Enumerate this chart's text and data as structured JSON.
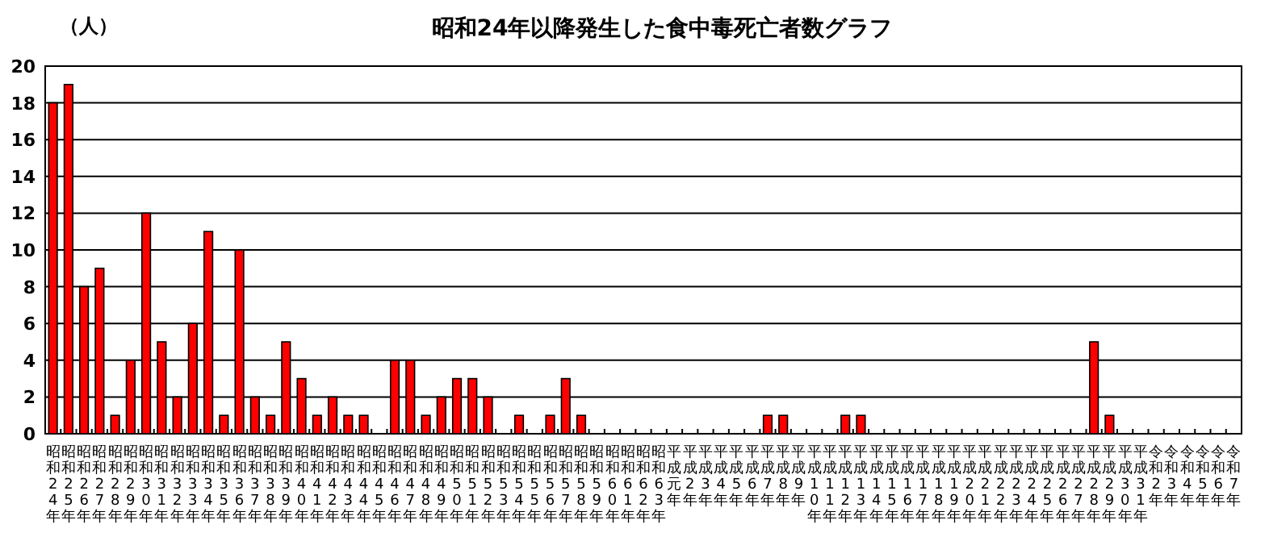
{
  "chart_data": {
    "type": "bar",
    "title": "昭和24年以降発生した食中毒死亡者数グラフ",
    "ylabel": "（人）",
    "categories": [
      "昭和24年",
      "昭和25年",
      "昭和26年",
      "昭和27年",
      "昭和28年",
      "昭和29年",
      "昭和30年",
      "昭和31年",
      "昭和32年",
      "昭和33年",
      "昭和34年",
      "昭和35年",
      "昭和36年",
      "昭和37年",
      "昭和38年",
      "昭和39年",
      "昭和40年",
      "昭和41年",
      "昭和42年",
      "昭和43年",
      "昭和44年",
      "昭和45年",
      "昭和46年",
      "昭和47年",
      "昭和48年",
      "昭和49年",
      "昭和50年",
      "昭和51年",
      "昭和52年",
      "昭和53年",
      "昭和54年",
      "昭和55年",
      "昭和56年",
      "昭和57年",
      "昭和58年",
      "昭和59年",
      "昭和60年",
      "昭和61年",
      "昭和62年",
      "昭和63年",
      "平成元年",
      "平成2年",
      "平成3年",
      "平成4年",
      "平成5年",
      "平成6年",
      "平成7年",
      "平成8年",
      "平成9年",
      "平成10年",
      "平成11年",
      "平成12年",
      "平成13年",
      "平成14年",
      "平成15年",
      "平成16年",
      "平成17年",
      "平成18年",
      "平成19年",
      "平成20年",
      "平成21年",
      "平成22年",
      "平成23年",
      "平成24年",
      "平成25年",
      "平成26年",
      "平成27年",
      "平成28年",
      "平成29年",
      "平成30年",
      "平成31年",
      "令和2年",
      "令和3年",
      "令和4年",
      "令和5年",
      "令和6年",
      "令和7年"
    ],
    "values": [
      18,
      19,
      8,
      9,
      1,
      4,
      12,
      5,
      2,
      6,
      11,
      1,
      10,
      2,
      1,
      5,
      3,
      1,
      2,
      1,
      1,
      0,
      4,
      4,
      1,
      2,
      3,
      3,
      2,
      0,
      1,
      0,
      1,
      3,
      1,
      0,
      0,
      0,
      0,
      0,
      0,
      0,
      0,
      0,
      0,
      0,
      1,
      1,
      0,
      0,
      0,
      1,
      1,
      0,
      0,
      0,
      0,
      0,
      0,
      0,
      0,
      0,
      0,
      0,
      0,
      0,
      0,
      5,
      1,
      0,
      0,
      0,
      0,
      0,
      0,
      0,
      0
    ],
    "color": "#ff0000",
    "ylim": [
      0,
      20
    ],
    "yticks": [
      0,
      2,
      4,
      6,
      8,
      10,
      12,
      14,
      16,
      18,
      20
    ],
    "grid": "y"
  }
}
